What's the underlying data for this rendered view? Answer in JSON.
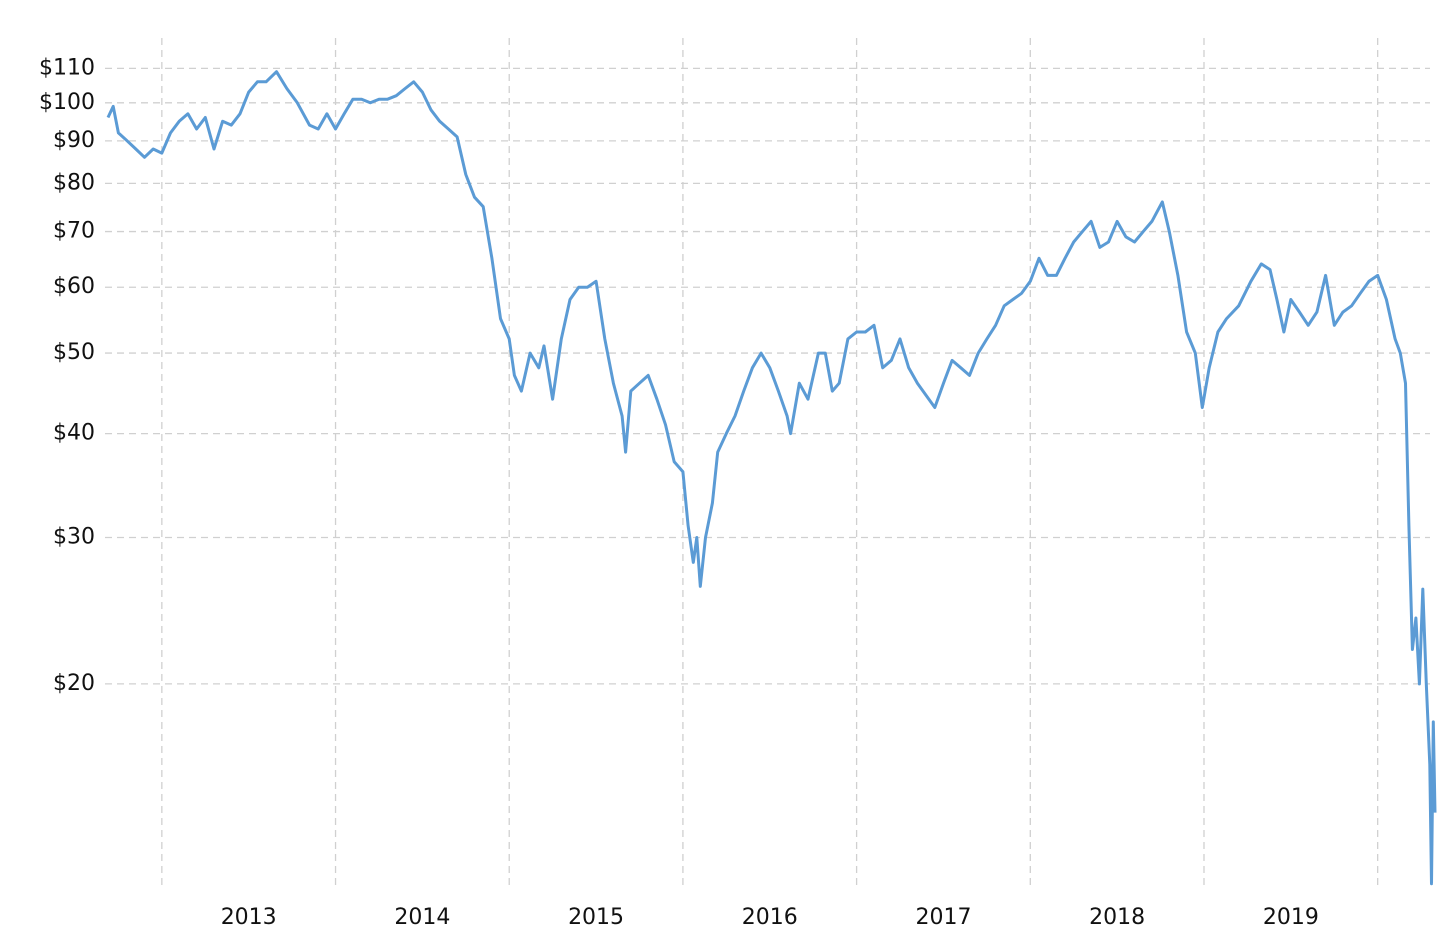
{
  "chart_data": {
    "type": "line",
    "log_y": true,
    "grid": true,
    "xlim": [
      2012.69,
      2020.33
    ],
    "ylim": [
      11.3,
      119
    ],
    "xticks": [
      {
        "value": 2013.5,
        "label": "2013"
      },
      {
        "value": 2014.5,
        "label": "2014"
      },
      {
        "value": 2015.5,
        "label": "2015"
      },
      {
        "value": 2016.5,
        "label": "2016"
      },
      {
        "value": 2017.5,
        "label": "2017"
      },
      {
        "value": 2018.5,
        "label": "2018"
      },
      {
        "value": 2019.5,
        "label": "2019"
      }
    ],
    "xgrid": [
      2013,
      2014,
      2015,
      2016,
      2017,
      2018,
      2019,
      2020
    ],
    "yticks": [
      {
        "value": 20,
        "label": "$20"
      },
      {
        "value": 30,
        "label": "$30"
      },
      {
        "value": 40,
        "label": "$40"
      },
      {
        "value": 50,
        "label": "$50"
      },
      {
        "value": 60,
        "label": "$60"
      },
      {
        "value": 70,
        "label": "$70"
      },
      {
        "value": 80,
        "label": "$80"
      },
      {
        "value": 90,
        "label": "$90"
      },
      {
        "value": 100,
        "label": "$100"
      },
      {
        "value": 110,
        "label": "$110"
      }
    ],
    "x": [
      2012.69,
      2012.72,
      2012.75,
      2012.8,
      2012.85,
      2012.9,
      2012.95,
      2013.0,
      2013.05,
      2013.1,
      2013.15,
      2013.2,
      2013.25,
      2013.3,
      2013.35,
      2013.4,
      2013.45,
      2013.5,
      2013.55,
      2013.6,
      2013.66,
      2013.72,
      2013.78,
      2013.85,
      2013.9,
      2013.95,
      2014.0,
      2014.05,
      2014.1,
      2014.15,
      2014.2,
      2014.25,
      2014.3,
      2014.35,
      2014.4,
      2014.45,
      2014.5,
      2014.55,
      2014.6,
      2014.65,
      2014.7,
      2014.75,
      2014.8,
      2014.85,
      2014.9,
      2014.95,
      2015.0,
      2015.03,
      2015.07,
      2015.12,
      2015.17,
      2015.2,
      2015.25,
      2015.3,
      2015.35,
      2015.4,
      2015.45,
      2015.5,
      2015.55,
      2015.6,
      2015.65,
      2015.67,
      2015.7,
      2015.75,
      2015.8,
      2015.85,
      2015.9,
      2015.95,
      2016.0,
      2016.03,
      2016.06,
      2016.08,
      2016.1,
      2016.13,
      2016.17,
      2016.2,
      2016.25,
      2016.3,
      2016.35,
      2016.4,
      2016.45,
      2016.5,
      2016.55,
      2016.6,
      2016.62,
      2016.67,
      2016.72,
      2016.78,
      2016.82,
      2016.86,
      2016.9,
      2016.95,
      2017.0,
      2017.05,
      2017.1,
      2017.15,
      2017.2,
      2017.25,
      2017.3,
      2017.35,
      2017.45,
      2017.5,
      2017.55,
      2017.6,
      2017.65,
      2017.7,
      2017.75,
      2017.8,
      2017.85,
      2017.9,
      2017.95,
      2018.0,
      2018.05,
      2018.1,
      2018.15,
      2018.2,
      2018.25,
      2018.3,
      2018.35,
      2018.4,
      2018.45,
      2018.5,
      2018.55,
      2018.6,
      2018.65,
      2018.7,
      2018.76,
      2018.8,
      2018.85,
      2018.9,
      2018.95,
      2018.99,
      2019.03,
      2019.08,
      2019.13,
      2019.2,
      2019.27,
      2019.33,
      2019.38,
      2019.42,
      2019.46,
      2019.5,
      2019.55,
      2019.6,
      2019.65,
      2019.7,
      2019.75,
      2019.8,
      2019.85,
      2019.9,
      2019.95,
      2020.0,
      2020.05,
      2020.1,
      2020.13,
      2020.16,
      2020.18,
      2020.2,
      2020.22,
      2020.24,
      2020.26,
      2020.28,
      2020.3,
      2020.31,
      2020.32,
      2020.33
    ],
    "series": [
      {
        "color": "#5b9bd5",
        "values": [
          96,
          99,
          92,
          90,
          88,
          86,
          88,
          87,
          92,
          95,
          97,
          93,
          96,
          88,
          95,
          94,
          97,
          103,
          106,
          106,
          109,
          104,
          100,
          94,
          93,
          97,
          93,
          97,
          101,
          101,
          100,
          101,
          101,
          102,
          104,
          106,
          103,
          98,
          95,
          93,
          91,
          82,
          77,
          75,
          65,
          55,
          52,
          47,
          45,
          50,
          48,
          51,
          44,
          52,
          58,
          60,
          60,
          61,
          52,
          46,
          42,
          38,
          45,
          46,
          47,
          44,
          41,
          37,
          36,
          31,
          28,
          30,
          26.2,
          30,
          33,
          38,
          40,
          42,
          45,
          48,
          50,
          48,
          45,
          42,
          40,
          46,
          44,
          50,
          50,
          45,
          46,
          52,
          53,
          53,
          54,
          48,
          49,
          52,
          48,
          46,
          43,
          46,
          49,
          48,
          47,
          50,
          52,
          54,
          57,
          58,
          59,
          61,
          65,
          62,
          62,
          65,
          68,
          70,
          72,
          67,
          68,
          72,
          69,
          68,
          70,
          72,
          76,
          70,
          62,
          53,
          50,
          43,
          48,
          53,
          55,
          57,
          61,
          64,
          63,
          58,
          53,
          58,
          56,
          54,
          56,
          62,
          54,
          56,
          57,
          59,
          61,
          62,
          58,
          52,
          50,
          46,
          31,
          22,
          24,
          20,
          26,
          20,
          16,
          11.5,
          18,
          14
        ]
      }
    ]
  }
}
